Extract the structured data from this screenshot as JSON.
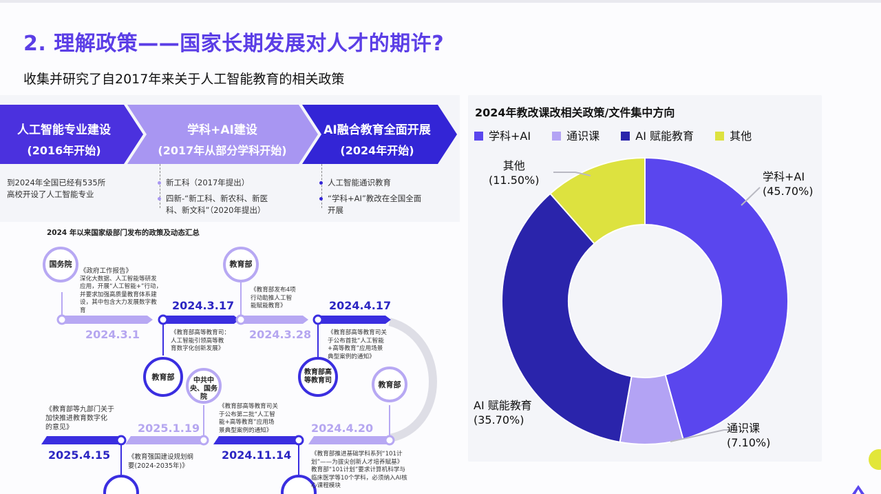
{
  "slide": {
    "title": "2. 理解政策——国家长期发展对人才的期许?",
    "subtitle": "收集并研究了自2017年来关于人工智能教育的相关政策"
  },
  "stages": [
    {
      "title": "人工智能专业建设",
      "period": "(2016年开始)",
      "color": "#4b31de"
    },
    {
      "title": "学科+AI建设",
      "period": "(2017年从部分学科开始)",
      "color": "#a896f2"
    },
    {
      "title": "AI融合教育全面开展",
      "period": "(2024年开始)",
      "color": "#3325d6"
    }
  ],
  "stage_notes": {
    "stage1": [
      "到2024年全国已经有535所",
      "高校开设了人工智能专业"
    ],
    "stage2": [
      "新工科（2017年提出）",
      "四新-“新工科、新农科、新医",
      "科、新文科”（2020年提出）"
    ],
    "stage3": [
      "人工智能通识教育",
      "“学科+AI”教改在全国全面",
      "开展"
    ]
  },
  "timeline": {
    "title": "2024 年以来国家级部门发布的政策及动态汇总",
    "events": [
      {
        "date": "2024.3.1",
        "org": "国务院",
        "doc": "《政府工作报告》",
        "detail": [
          "深化大数据、人工智能等研发",
          "应用，开展“人工智能+”行动，",
          "并要求加强高质量教育体系建",
          "设，其中包含大力发展数字教",
          "育"
        ]
      },
      {
        "date": "2024.3.17",
        "org": "教育部",
        "doc": "《教育部高等教育司：",
        "detail": [
          "人工智能引领高等教",
          "育数字化创新发展》"
        ]
      },
      {
        "date": "2024.3.28",
        "org": "教育部",
        "doc": "《教育部发布4项",
        "detail": [
          "行动助推人工智",
          "能赋能教育》"
        ]
      },
      {
        "date": "2024.4.17",
        "org": "教育部高等教育司",
        "doc": "《教育部高等教育司关",
        "detail": [
          "于公布首批“人工智能",
          "+高等教育”应用场景",
          "典型案例的通知》"
        ]
      },
      {
        "date": "2024.4.20",
        "org": "教育部",
        "doc": "《教育部推进基础学科系列“101计",
        "detail": [
          "划”——为拔尖创新人才培养赋基》"
        ],
        "extra": [
          "教育部“101计划”要求计算机科学与",
          "临床医学等10个学科，必须纳入AI核",
          "心课程模块"
        ]
      },
      {
        "date": "2024.11.14",
        "org": "中共中央、国务院",
        "doc": "《教育部高等教育司关",
        "detail": [
          "于公布第二批“人工智",
          "能+高等教育”应用场",
          "景典型案例的通知》"
        ]
      },
      {
        "date": "2025.1.19",
        "org": "",
        "doc": "《教育强国建设规划纲",
        "detail": [
          "要(2024-2035年)》"
        ]
      },
      {
        "date": "2025.4.15",
        "org": "",
        "doc": "《教育部等九部门关于",
        "detail": [
          "加快推进教育数字化",
          "的意见》"
        ]
      }
    ]
  },
  "chart_data": {
    "type": "pie",
    "title": "2024年教改课改相关政策/文件集中方向",
    "legend_position": "top",
    "categories": [
      "学科+AI",
      "通识课",
      "AI 赋能教育",
      "其他"
    ],
    "values": [
      45.7,
      7.1,
      35.7,
      11.5
    ],
    "value_labels": [
      "(45.70%)",
      "(7.10%)",
      "(35.70%)",
      "(11.50%)"
    ],
    "colors": [
      "#5a46ee",
      "#b3a3f4",
      "#2a24ab",
      "#dde23f"
    ]
  }
}
